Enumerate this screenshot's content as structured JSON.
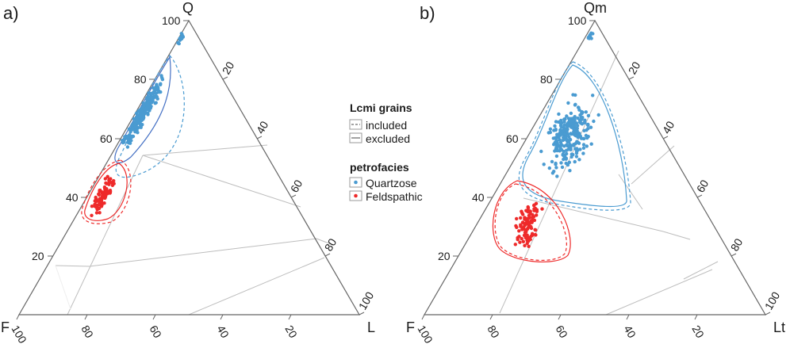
{
  "chart_data": [
    {
      "type": "ternary",
      "panel": "a)",
      "apices": {
        "top": "Q",
        "left": "F",
        "right": "L"
      },
      "ticks": {
        "top": [
          "20",
          "40",
          "60",
          "80",
          "100"
        ],
        "right": [
          "20",
          "40",
          "60",
          "80",
          "100"
        ],
        "bottom": [
          "100",
          "80",
          "60",
          "40",
          "20"
        ]
      },
      "grid": "field-boundaries",
      "series": [
        {
          "name": "Quartzose",
          "color": "#4a9bd1",
          "region": "upper band along Q–F edge",
          "approx_Q_range": [
            52,
            98
          ]
        },
        {
          "name": "Feldspathic",
          "color": "#ee2a2a",
          "region": "lower cluster along Q–F edge",
          "approx_Q_range": [
            28,
            55
          ]
        }
      ]
    },
    {
      "type": "ternary",
      "panel": "b)",
      "apices": {
        "top": "Qm",
        "left": "F",
        "right": "Lt"
      },
      "ticks": {
        "top": [
          "20",
          "40",
          "60",
          "80",
          "100"
        ],
        "right": [
          "20",
          "40",
          "60",
          "80",
          "100"
        ],
        "bottom": [
          "100",
          "80",
          "60",
          "40",
          "20"
        ]
      },
      "grid": "field-boundaries",
      "series": [
        {
          "name": "Quartzose",
          "color": "#4a9bd1",
          "region": "broad cloud in upper triangle",
          "approx_Qm_range": [
            40,
            98
          ]
        },
        {
          "name": "Feldspathic",
          "color": "#ee2a2a",
          "region": "cluster in lower-left",
          "approx_Qm_range": [
            18,
            45
          ]
        }
      ]
    }
  ],
  "legend": {
    "group1_title": "Lcmi grains",
    "group1_items": [
      {
        "label": "included",
        "style": "dashed"
      },
      {
        "label": "excluded",
        "style": "solid"
      }
    ],
    "group2_title": "petrofacies",
    "group2_items": [
      {
        "label": "Quartzose",
        "color": "#4a9bd1"
      },
      {
        "label": "Feldspathic",
        "color": "#ee2a2a"
      }
    ]
  },
  "colors": {
    "quartzose": "#4a9bd1",
    "feldspathic": "#ee2a2a",
    "axis": "#555555",
    "grid": "#bbbbbb"
  }
}
